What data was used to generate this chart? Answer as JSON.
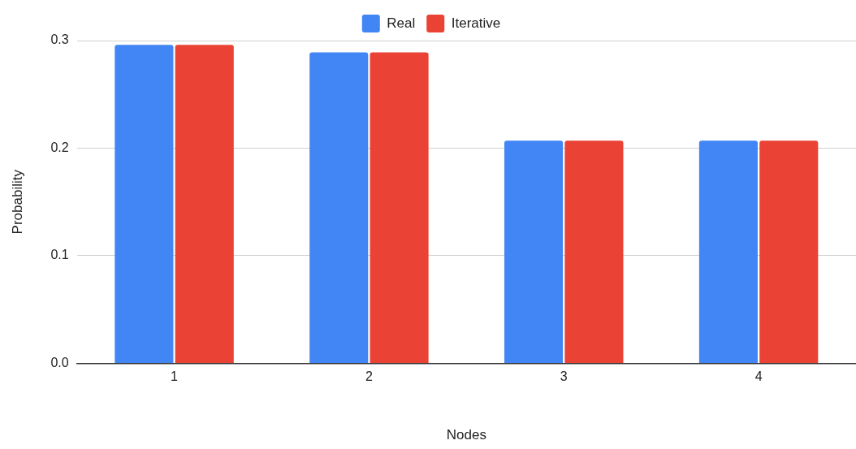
{
  "chart_data": {
    "type": "bar",
    "xlabel": "Nodes",
    "ylabel": "Probability",
    "categories": [
      "1",
      "2",
      "3",
      "4"
    ],
    "series": [
      {
        "name": "Real",
        "color": "#4285f4",
        "values": [
          0.296,
          0.289,
          0.207,
          0.207
        ]
      },
      {
        "name": "Iterative",
        "color": "#ea4335",
        "values": [
          0.296,
          0.289,
          0.207,
          0.207
        ]
      }
    ],
    "ylim": [
      0,
      0.3
    ],
    "yticks": [
      {
        "value": 0,
        "label": "0.0"
      },
      {
        "value": 0.1,
        "label": "0.1"
      },
      {
        "value": 0.2,
        "label": "0.2"
      },
      {
        "value": 0.3,
        "label": "0.3"
      }
    ],
    "grid": "y",
    "legend": "top"
  }
}
